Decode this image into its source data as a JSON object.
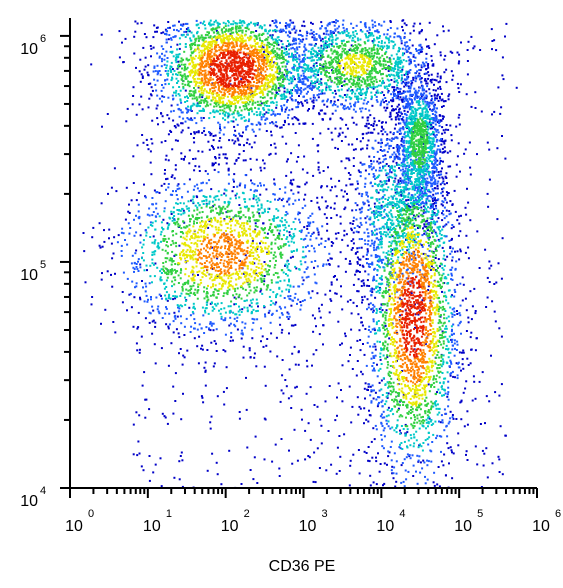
{
  "chart_data": {
    "type": "scatter",
    "subtype": "flow-cytometry-density-dot-plot",
    "xlabel": "CD36 PE",
    "ylabel": "",
    "x_scale": "log",
    "y_scale": "log",
    "xlim": [
      1,
      1000000
    ],
    "ylim": [
      10000,
      1200000
    ],
    "x_ticks": [
      {
        "base": "10",
        "exp": "0",
        "value": 1
      },
      {
        "base": "10",
        "exp": "1",
        "value": 10
      },
      {
        "base": "10",
        "exp": "2",
        "value": 100
      },
      {
        "base": "10",
        "exp": "3",
        "value": 1000
      },
      {
        "base": "10",
        "exp": "4",
        "value": 10000
      },
      {
        "base": "10",
        "exp": "5",
        "value": 100000
      },
      {
        "base": "10",
        "exp": "6",
        "value": 1000000
      }
    ],
    "y_ticks": [
      {
        "base": "10",
        "exp": "4",
        "value": 10000
      },
      {
        "base": "10",
        "exp": "5",
        "value": 100000
      },
      {
        "base": "10",
        "exp": "6",
        "value": 1000000
      }
    ],
    "density_colors": [
      "#0000c8",
      "#1e5aff",
      "#00c8c8",
      "#30d040",
      "#e8e800",
      "#ff8000",
      "#e82000"
    ],
    "series": [
      {
        "x": 120,
        "y": 720000,
        "spread_x": 0.22,
        "spread_y": 0.06,
        "weight": 1.0
      },
      {
        "x": 4500,
        "y": 750000,
        "spread_x": 0.22,
        "spread_y": 0.05,
        "weight": 0.55
      },
      {
        "x": 90,
        "y": 110000,
        "spread_x": 0.3,
        "spread_y": 0.08,
        "weight": 0.75
      },
      {
        "x": 25000,
        "y": 58000,
        "spread_x": 0.13,
        "spread_y": 0.16,
        "weight": 0.95
      },
      {
        "x": 30000,
        "y": 340000,
        "spread_x": 0.07,
        "spread_y": 0.07,
        "weight": 0.45
      },
      {
        "x": 15000,
        "y": 170000,
        "spread_x": 0.15,
        "spread_y": 0.1,
        "weight": 0.35
      }
    ]
  }
}
